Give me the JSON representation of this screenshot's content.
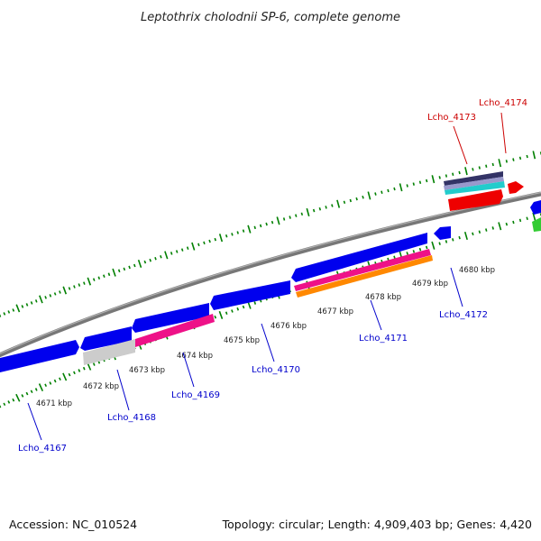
{
  "header": {
    "title": "Leptothrix cholodnii SP-6, complete genome"
  },
  "footer": {
    "accession": "Accession: NC_010524",
    "summary": "Topology: circular; Length: 4,909,403 bp; Genes: 4,420"
  },
  "colors": {
    "tick": "#008000",
    "backbone": "#808080",
    "minus_label": "#0000cc",
    "plus_label": "#cc0000"
  },
  "scale_labels": [
    "4671 kbp",
    "4672 kbp",
    "4673 kbp",
    "4674 kbp",
    "4675 kbp",
    "4676 kbp",
    "4677 kbp",
    "4678 kbp",
    "4679 kbp",
    "4680 kbp"
  ],
  "gene_labels": [
    "Lcho_4167",
    "Lcho_4168",
    "Lcho_4169",
    "Lcho_4170",
    "Lcho_4171",
    "Lcho_4172",
    "Lcho_4173",
    "Lcho_4174"
  ]
}
